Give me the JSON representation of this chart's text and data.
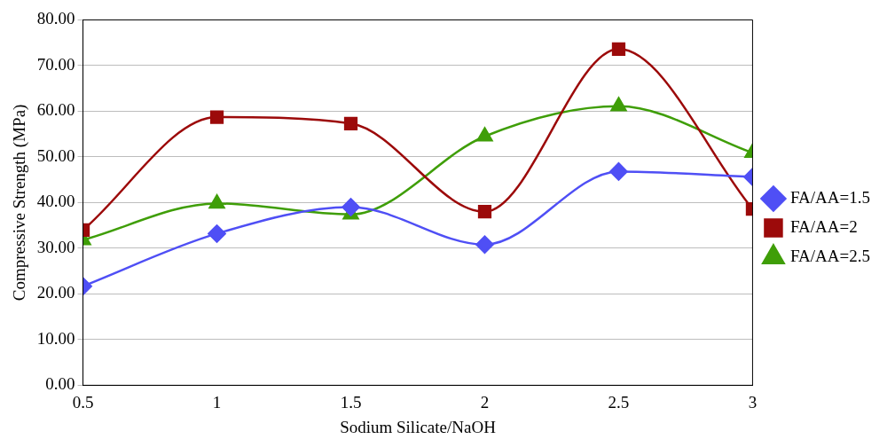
{
  "chart_data": {
    "type": "line",
    "xlabel": "Sodium Silicate/NaOH",
    "ylabel": "Compressive Strength (MPa)",
    "x": [
      0.5,
      1,
      1.5,
      2,
      2.5,
      3
    ],
    "xlim": [
      0.5,
      3
    ],
    "xticks": [
      0.5,
      1,
      1.5,
      2,
      2.5,
      3
    ],
    "ylim": [
      0,
      80
    ],
    "yticks": [
      {
        "value": 0,
        "label": "0.00"
      },
      {
        "value": 10,
        "label": "10.00"
      },
      {
        "value": 20,
        "label": "20.00"
      },
      {
        "value": 30,
        "label": "30.00"
      },
      {
        "value": 40,
        "label": "40.00"
      },
      {
        "value": 50,
        "label": "50.00"
      },
      {
        "value": 60,
        "label": "60.00"
      },
      {
        "value": 70,
        "label": "70.00"
      },
      {
        "value": 80,
        "label": "80.00"
      }
    ],
    "grid": "y",
    "legend": "right",
    "line_style": "solid",
    "series": [
      {
        "name": "FA/AA=1.5",
        "color": "#4f4ff5",
        "marker": "diamond",
        "values": [
          21.7,
          33.2,
          39.0,
          30.8,
          46.8,
          45.6
        ]
      },
      {
        "name": "FA/AA=2",
        "color": "#9c0a0a",
        "marker": "square",
        "values": [
          34.0,
          58.7,
          57.3,
          38.0,
          73.6,
          38.6
        ]
      },
      {
        "name": "FA/AA=2.5",
        "color": "#3f9e08",
        "marker": "triangle",
        "values": [
          31.8,
          39.8,
          37.4,
          54.5,
          61.1,
          50.9
        ]
      }
    ]
  }
}
